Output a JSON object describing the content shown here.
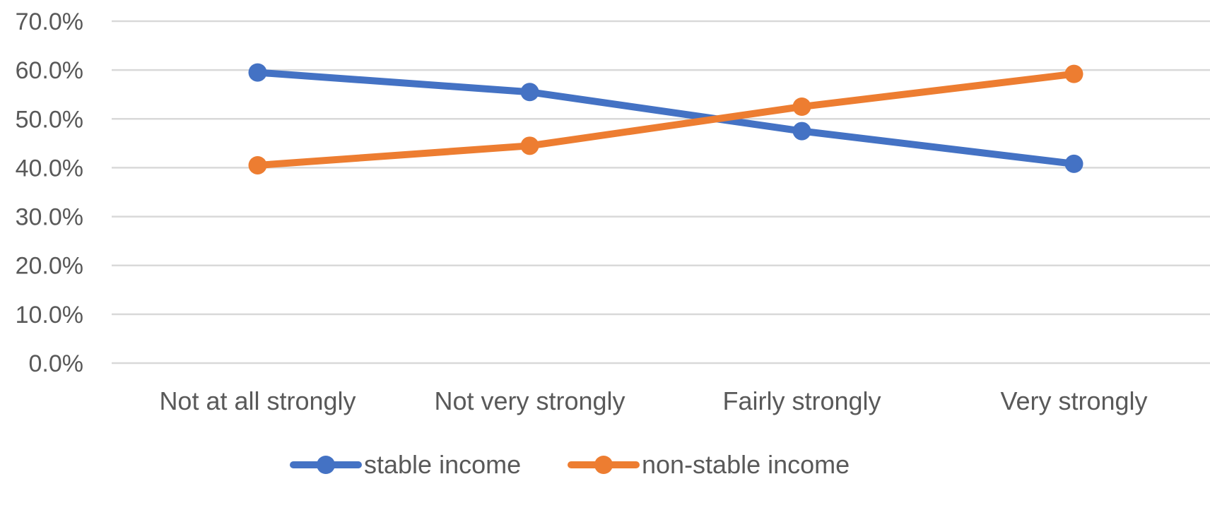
{
  "chart_data": {
    "type": "line",
    "title": "",
    "xlabel": "",
    "ylabel": "",
    "categories": [
      "Not at all strongly",
      "Not very strongly",
      "Fairly strongly",
      "Very strongly"
    ],
    "y_ticks": [
      "0.0%",
      "10.0%",
      "20.0%",
      "30.0%",
      "40.0%",
      "50.0%",
      "60.0%",
      "70.0%"
    ],
    "ylim": [
      0,
      70
    ],
    "y_unit": "%",
    "grid": true,
    "legend_position": "bottom",
    "series": [
      {
        "name": "stable income",
        "color": "#4472c4",
        "marker": "circle",
        "values": [
          59.5,
          55.5,
          47.5,
          40.8
        ]
      },
      {
        "name": "non-stable income",
        "color": "#ed7d31",
        "marker": "circle",
        "values": [
          40.5,
          44.5,
          52.5,
          59.2
        ]
      }
    ]
  }
}
